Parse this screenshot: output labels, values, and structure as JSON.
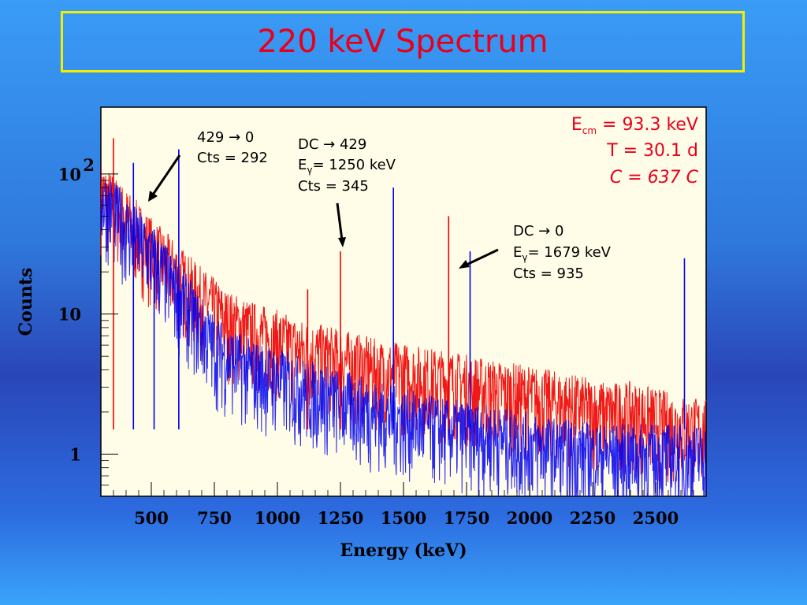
{
  "slide": {
    "title": "220 keV Spectrum"
  },
  "colors": {
    "plot_bg": "#fffce8",
    "red_series": "#ee0000",
    "blue_series": "#0000ee",
    "info_text": "#e8001a",
    "title_border": "#f2f000"
  },
  "chart_data": {
    "type": "line",
    "title": "",
    "xlabel": "Energy (keV)",
    "ylabel": "Counts",
    "xlim": [
      300,
      2700
    ],
    "ylim": [
      0.5,
      300
    ],
    "yscale": "log",
    "grid": false,
    "x_ticks": [
      500,
      750,
      1000,
      1250,
      1500,
      1750,
      2000,
      2250,
      2500
    ],
    "x_tick_labels": [
      "500",
      "750",
      "1000",
      "1250",
      "1500",
      "1750",
      "2000",
      "2250",
      "2500"
    ],
    "y_ticks": [
      1,
      10,
      100
    ],
    "y_tick_labels": [
      {
        "base": "1",
        "exp": ""
      },
      {
        "base": "10",
        "exp": ""
      },
      {
        "base": "10",
        "exp": "2"
      }
    ],
    "series": [
      {
        "color": "#ee0000",
        "x": [
          300,
          350,
          400,
          450,
          500,
          550,
          600,
          650,
          700,
          750,
          800,
          900,
          1000,
          1100,
          1200,
          1300,
          1400,
          1500,
          1600,
          1700,
          1800,
          1900,
          2000,
          2100,
          2200,
          2300,
          2400,
          2500,
          2600,
          2700
        ],
        "y": [
          75,
          60,
          48,
          38,
          30,
          24,
          20,
          16,
          13,
          11,
          9,
          7.5,
          6.5,
          5.5,
          5,
          4.5,
          4,
          3.8,
          3.5,
          3.3,
          3,
          2.8,
          2.6,
          2.4,
          2.2,
          2,
          2,
          1.8,
          1.6,
          1.5
        ]
      },
      {
        "color": "#0000ee",
        "x": [
          300,
          350,
          400,
          450,
          500,
          550,
          600,
          650,
          700,
          750,
          800,
          900,
          1000,
          1100,
          1200,
          1300,
          1400,
          1500,
          1600,
          1700,
          1800,
          1900,
          2000,
          2100,
          2200,
          2300,
          2400,
          2500,
          2600,
          2700
        ],
        "y": [
          70,
          55,
          43,
          34,
          26,
          20,
          15,
          11,
          8,
          6,
          5,
          4,
          3.5,
          3,
          2.6,
          2.3,
          2,
          1.8,
          1.6,
          1.5,
          1.4,
          1.3,
          1.2,
          1.1,
          1.05,
          1,
          1,
          1,
          1,
          1
        ]
      }
    ],
    "peaks": [
      {
        "x": 350,
        "y": 180,
        "color": "#ee0000"
      },
      {
        "x": 429,
        "y": 120,
        "color": "#0000ee"
      },
      {
        "x": 511,
        "y": 40,
        "color": "#0000ee"
      },
      {
        "x": 609,
        "y": 150,
        "color": "#0000ee"
      },
      {
        "x": 1120,
        "y": 15,
        "color": "#ee0000"
      },
      {
        "x": 1250,
        "y": 28,
        "color": "#ee0000"
      },
      {
        "x": 1460,
        "y": 80,
        "color": "#0000ee"
      },
      {
        "x": 1679,
        "y": 50,
        "color": "#ee0000"
      },
      {
        "x": 1764,
        "y": 28,
        "color": "#0000ee"
      },
      {
        "x": 2614,
        "y": 25,
        "color": "#0000ee"
      }
    ]
  },
  "annotations": {
    "a429": {
      "line1": "429 → 0",
      "line2": "Cts = 292"
    },
    "a1250": {
      "line1": "DC → 429",
      "e_label": "E",
      "e_sub": "γ",
      "e_value": "= 1250 keV",
      "cts": "Cts = 345"
    },
    "a1679": {
      "line1": "DC → 0",
      "e_label": "E",
      "e_sub": "γ",
      "e_value": "= 1679 keV",
      "cts": "Cts = 935"
    }
  },
  "info": {
    "ecm_label": "E",
    "ecm_sub": "cm",
    "ecm_value": " = 93.3 keV",
    "t_line": "T = 30.1 d",
    "c_line": "C = 637 C"
  }
}
